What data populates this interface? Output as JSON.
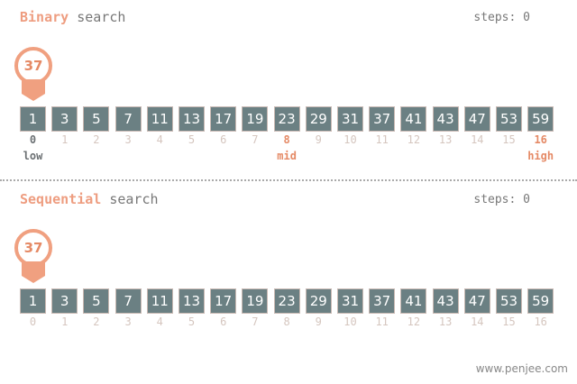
{
  "binary": {
    "title_highlight": "Binary",
    "title_rest": " search",
    "steps": "steps: 0",
    "target": "37",
    "low_label": "low",
    "mid_label": "mid",
    "high_label": "high",
    "low": 0,
    "mid": 8,
    "high": 16
  },
  "sequential": {
    "title_highlight": "Sequential",
    "title_rest": " search",
    "steps": "steps: 0",
    "target": "37"
  },
  "array": [
    "1",
    "3",
    "5",
    "7",
    "11",
    "13",
    "17",
    "19",
    "23",
    "29",
    "31",
    "37",
    "41",
    "43",
    "47",
    "53",
    "59"
  ],
  "footer": "www.penjee.com",
  "colors": {
    "box": "#6b8083",
    "accent": "#e58a66",
    "marker": "#f0a080",
    "index": "#d5c6bf"
  }
}
